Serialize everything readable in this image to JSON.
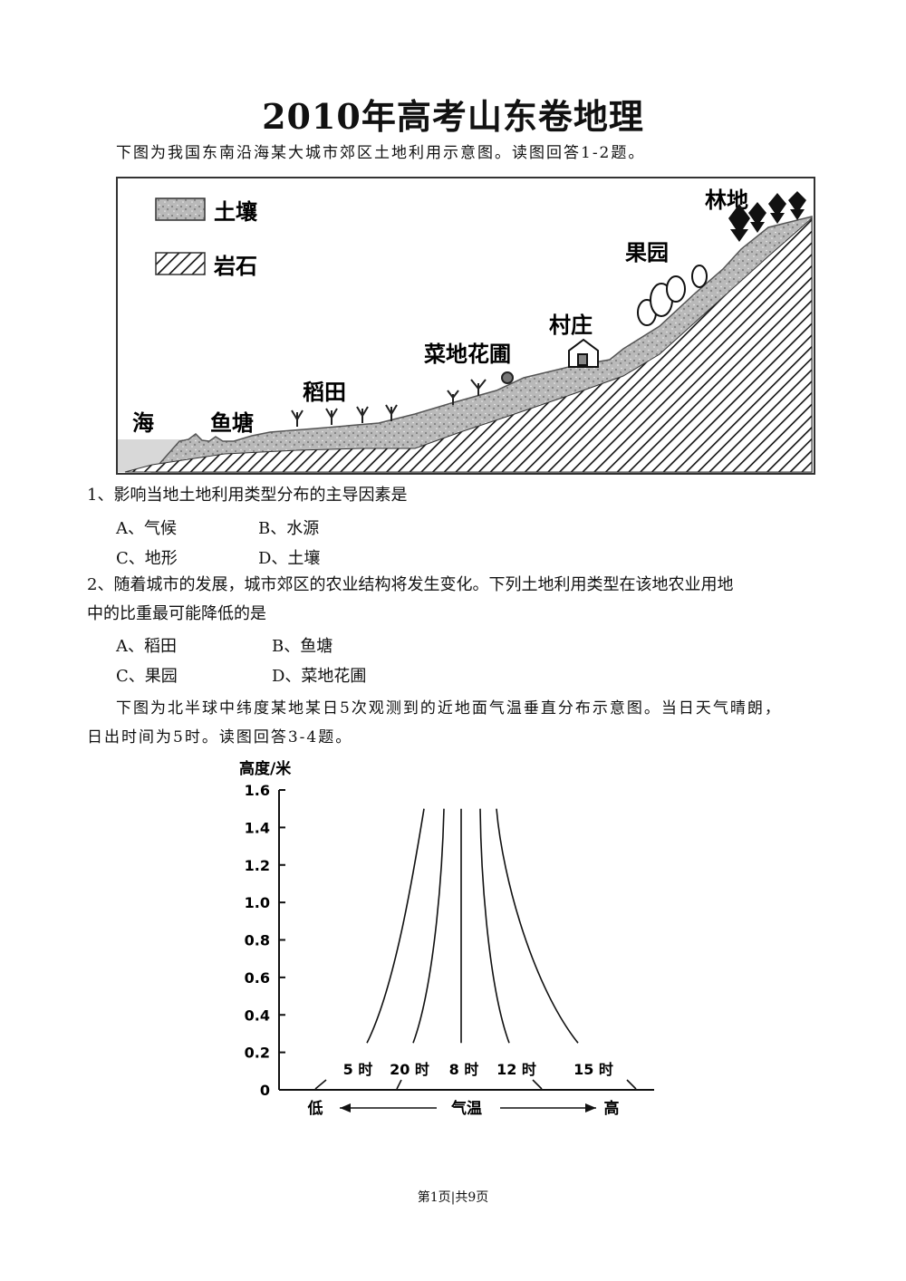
{
  "page": {
    "title": "2010年高考山东卷地理",
    "intro1": "下图为我国东南沿海某大城市郊区土地利用示意图。读图回答1-2题。",
    "diagram1": {
      "legend_soil": "土壤",
      "legend_rock": "岩石",
      "labels": {
        "sea": "海",
        "fishpond": "鱼塘",
        "paddy": "稻田",
        "garden": "菜地花圃",
        "village": "村庄",
        "orchard": "果园",
        "forest": "林地"
      }
    },
    "q1": {
      "stem": "1、影响当地土地利用类型分布的主导因素是",
      "a": "A、气候",
      "b": "B、水源",
      "c": "C、地形",
      "d": "D、土壤"
    },
    "q2": {
      "stem_line1": "2、随着城市的发展，城市郊区的农业结构将发生变化。下列土地利用类型在该地农业用地",
      "stem_line2": "中的比重最可能降低的是",
      "a": "A、稻田",
      "b": "B、鱼塘",
      "c": "C、果园",
      "d": "D、菜地花圃"
    },
    "intro2_line1": "下图为北半球中纬度某地某日5次观测到的近地面气温垂直分布示意图。当日天气晴朗，",
    "intro2_line2": "日出时间为5时。读图回答3-4题。",
    "footer": "第1页|共9页"
  },
  "chart_data": {
    "type": "line",
    "title": "",
    "ylabel": "高度/米",
    "xlabel": "气温",
    "x_low_label": "低",
    "x_high_label": "高",
    "ylim": [
      0,
      1.6
    ],
    "yticks": [
      "0",
      "0.2",
      "0.4",
      "0.6",
      "0.8",
      "1.0",
      "1.2",
      "1.4",
      "1.6"
    ],
    "series": [
      {
        "name": "5 时",
        "profile": "cold-surface-inversion"
      },
      {
        "name": "20 时",
        "profile": "weak-inversion"
      },
      {
        "name": "8 时",
        "profile": "isothermal"
      },
      {
        "name": "12 时",
        "profile": "weak-lapse"
      },
      {
        "name": "15 时",
        "profile": "strong-lapse"
      }
    ]
  }
}
